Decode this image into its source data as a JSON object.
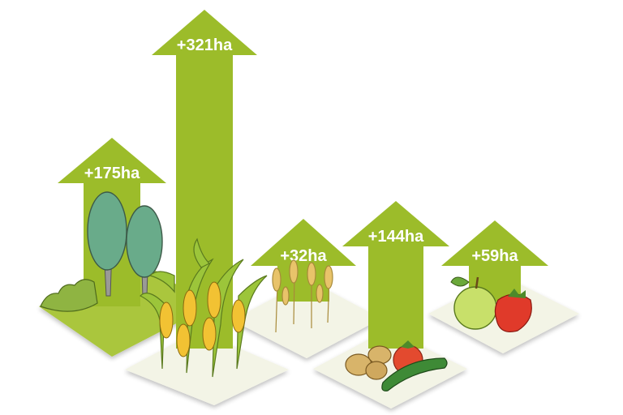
{
  "colors": {
    "arrow": "#9cbc2a",
    "tile_light": "#f3f4e6",
    "tile_green": "#aac63c",
    "tile_shadow": "#d9dbc9",
    "label": "#ffffff"
  },
  "items": [
    {
      "key": "forest",
      "value": 175,
      "label": "+175ha",
      "icon": "tree-icon"
    },
    {
      "key": "maize",
      "value": 321,
      "label": "+321ha",
      "icon": "maize-icon"
    },
    {
      "key": "cereals",
      "value": 32,
      "label": "+32ha",
      "icon": "wheat-icon"
    },
    {
      "key": "vegetables",
      "value": 144,
      "label": "+144ha",
      "icon": "vegetables-icon"
    },
    {
      "key": "fruit",
      "value": 59,
      "label": "+59ha",
      "icon": "fruit-icon"
    }
  ]
}
